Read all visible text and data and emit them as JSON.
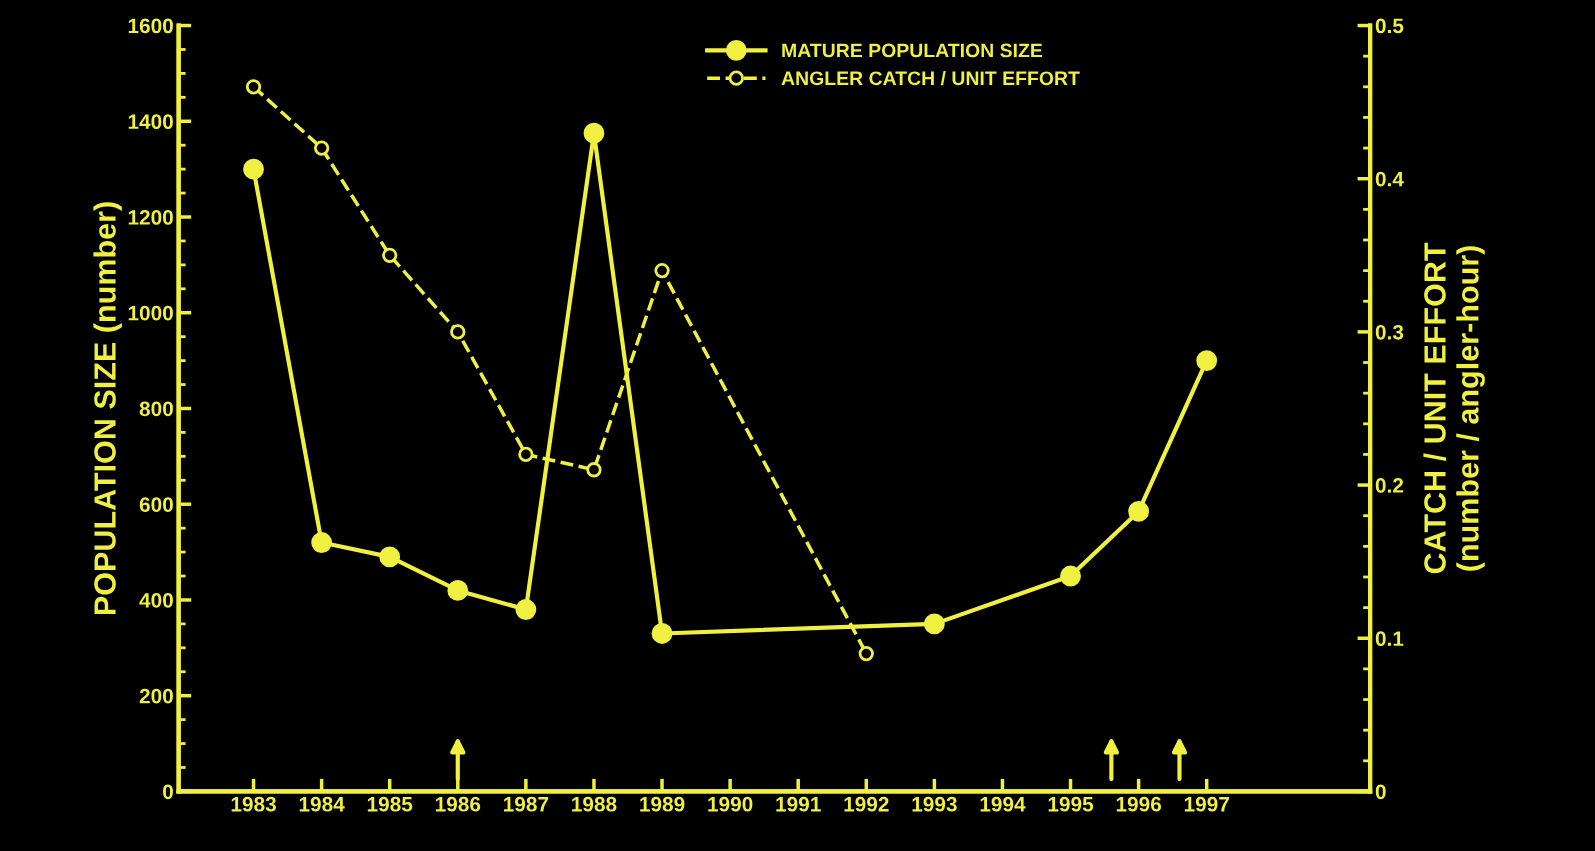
{
  "chart_data": {
    "type": "line",
    "ylabel": "POPULATION SIZE (number)",
    "y2label": "CATCH / UNIT EFFORT\n(number / angler-hour)",
    "xlim": [
      1981.9,
      1999.4
    ],
    "xticks": [
      1983,
      1984,
      1985,
      1986,
      1987,
      1988,
      1989,
      1990,
      1991,
      1992,
      1993,
      1994,
      1995,
      1996,
      1997
    ],
    "ylim": [
      0,
      1600
    ],
    "yticks": [
      0,
      200,
      400,
      600,
      800,
      1000,
      1200,
      1400,
      1600
    ],
    "y2lim": [
      0,
      0.5
    ],
    "y2ticks": [
      0,
      0.1,
      0.2,
      0.3,
      0.4,
      0.5
    ],
    "series": [
      {
        "name": "MATURE POPULATION SIZE",
        "color": "#f0f040",
        "line_style": "solid",
        "marker": "circle",
        "x": [
          1983,
          1984,
          1985,
          1986,
          1987,
          1988,
          1989,
          1993,
          1995,
          1996,
          1997
        ],
        "values": [
          1300,
          520,
          490,
          420,
          380,
          1375,
          330,
          350,
          450,
          585,
          900
        ]
      },
      {
        "name": "ANGLER CATCH / UNIT EFFORT",
        "color": "#f0f040",
        "line_style": "dashed",
        "marker": "circle",
        "axis": "y2",
        "x": [
          1983,
          1984,
          1985,
          1986,
          1987,
          1988,
          1989,
          1992
        ],
        "values": [
          0.46,
          0.42,
          0.35,
          0.3,
          0.22,
          0.21,
          0.34,
          0.09
        ]
      }
    ],
    "legend": "top",
    "grid": false
  }
}
